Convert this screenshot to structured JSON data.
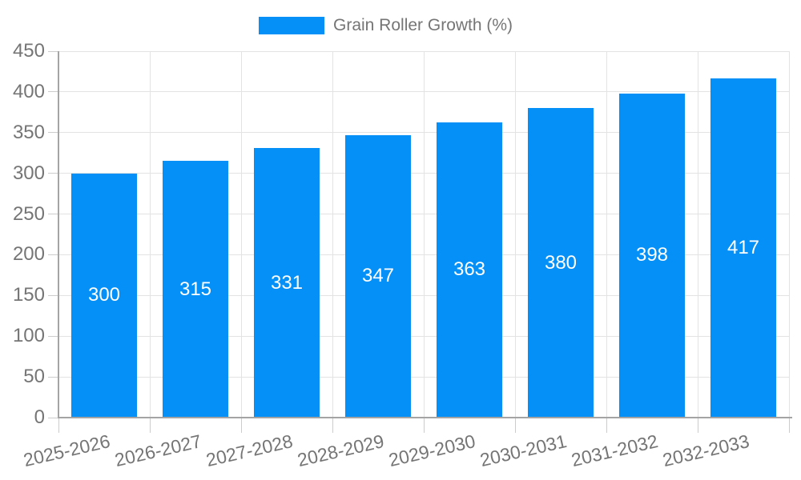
{
  "chart_data": {
    "type": "bar",
    "title": "Grain Roller Growth (%)",
    "legend": {
      "label": "Grain Roller Growth (%)",
      "position": "top-center"
    },
    "categories": [
      "2025-2026",
      "2026-2027",
      "2027-2028",
      "2028-2029",
      "2029-2030",
      "2030-2031",
      "2031-2032",
      "2032-2033"
    ],
    "values": [
      300,
      315,
      331,
      347,
      363,
      380,
      398,
      417
    ],
    "value_labels_inside_bars": true,
    "xlabel": "",
    "ylabel": "",
    "ylim": [
      0,
      450
    ],
    "ytick_step": 50,
    "grid": true,
    "x_label_rotation_deg": -13,
    "colors": {
      "bar": "#0590f8",
      "value_label": "#ffffff",
      "axis_text": "#757575",
      "grid_line": "#e3e3e3",
      "tick_line": "#cccccc",
      "axis_line": "#a4a4a4",
      "background": "#ffffff"
    }
  }
}
